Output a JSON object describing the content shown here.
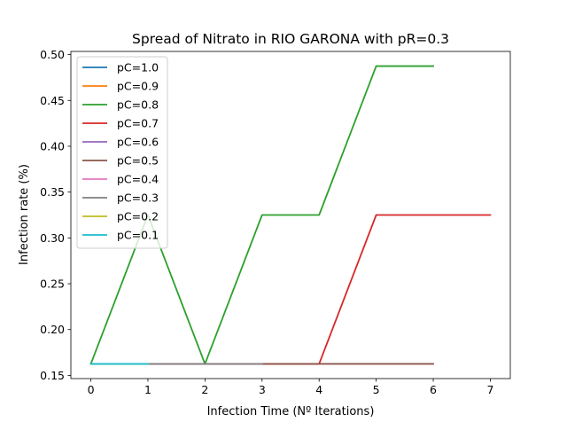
{
  "chart_data": {
    "type": "line",
    "title": "Spread of Nitrato in RIO GARONA with pR=0.3",
    "xlabel": "Infection Time (Nº Iterations)",
    "ylabel": "Infection rate (%)",
    "xlim": [
      -0.35,
      7.35
    ],
    "ylim": [
      0.1465,
      0.5035
    ],
    "xticks": [
      0,
      1,
      2,
      3,
      4,
      5,
      6,
      7
    ],
    "yticks": [
      0.15,
      0.2,
      0.25,
      0.3,
      0.35,
      0.4,
      0.45,
      0.5
    ],
    "ytick_labels": [
      "0.15",
      "0.20",
      "0.25",
      "0.30",
      "0.35",
      "0.40",
      "0.45",
      "0.50"
    ],
    "grid": false,
    "legend_position": "top-left",
    "series": [
      {
        "name": "pC=1.0",
        "color": "#1f77b4",
        "x": [
          0,
          1
        ],
        "y": [
          0.1625,
          0.1625
        ]
      },
      {
        "name": "pC=0.9",
        "color": "#ff7f0e",
        "x": [
          0,
          1,
          2,
          3
        ],
        "y": [
          0.1625,
          0.1625,
          0.1625,
          0.1625
        ]
      },
      {
        "name": "pC=0.8",
        "color": "#2ca02c",
        "x": [
          0,
          1,
          2,
          3,
          4,
          5,
          6
        ],
        "y": [
          0.1625,
          0.325,
          0.1625,
          0.325,
          0.325,
          0.4875,
          0.4875
        ]
      },
      {
        "name": "pC=0.7",
        "color": "#d62728",
        "x": [
          0,
          1,
          2,
          3,
          4,
          5,
          6,
          7
        ],
        "y": [
          0.1625,
          0.1625,
          0.1625,
          0.1625,
          0.1625,
          0.325,
          0.325,
          0.325
        ]
      },
      {
        "name": "pC=0.6",
        "color": "#9467bd",
        "x": [
          0,
          1,
          2,
          3
        ],
        "y": [
          0.1625,
          0.1625,
          0.1625,
          0.1625
        ]
      },
      {
        "name": "pC=0.5",
        "color": "#8c564b",
        "x": [
          0,
          1,
          2,
          3,
          4,
          5,
          6
        ],
        "y": [
          0.1625,
          0.1625,
          0.1625,
          0.1625,
          0.1625,
          0.1625,
          0.1625
        ]
      },
      {
        "name": "pC=0.4",
        "color": "#e377c2",
        "x": [
          0,
          1,
          2,
          3
        ],
        "y": [
          0.1625,
          0.1625,
          0.1625,
          0.1625
        ]
      },
      {
        "name": "pC=0.3",
        "color": "#7f7f7f",
        "x": [
          0,
          1,
          2,
          3
        ],
        "y": [
          0.1625,
          0.1625,
          0.1625,
          0.1625
        ]
      },
      {
        "name": "pC=0.2",
        "color": "#bcbd22",
        "x": [
          0,
          1
        ],
        "y": [
          0.1625,
          0.1625
        ]
      },
      {
        "name": "pC=0.1",
        "color": "#17becf",
        "x": [
          0,
          1
        ],
        "y": [
          0.1625,
          0.1625
        ]
      }
    ]
  }
}
